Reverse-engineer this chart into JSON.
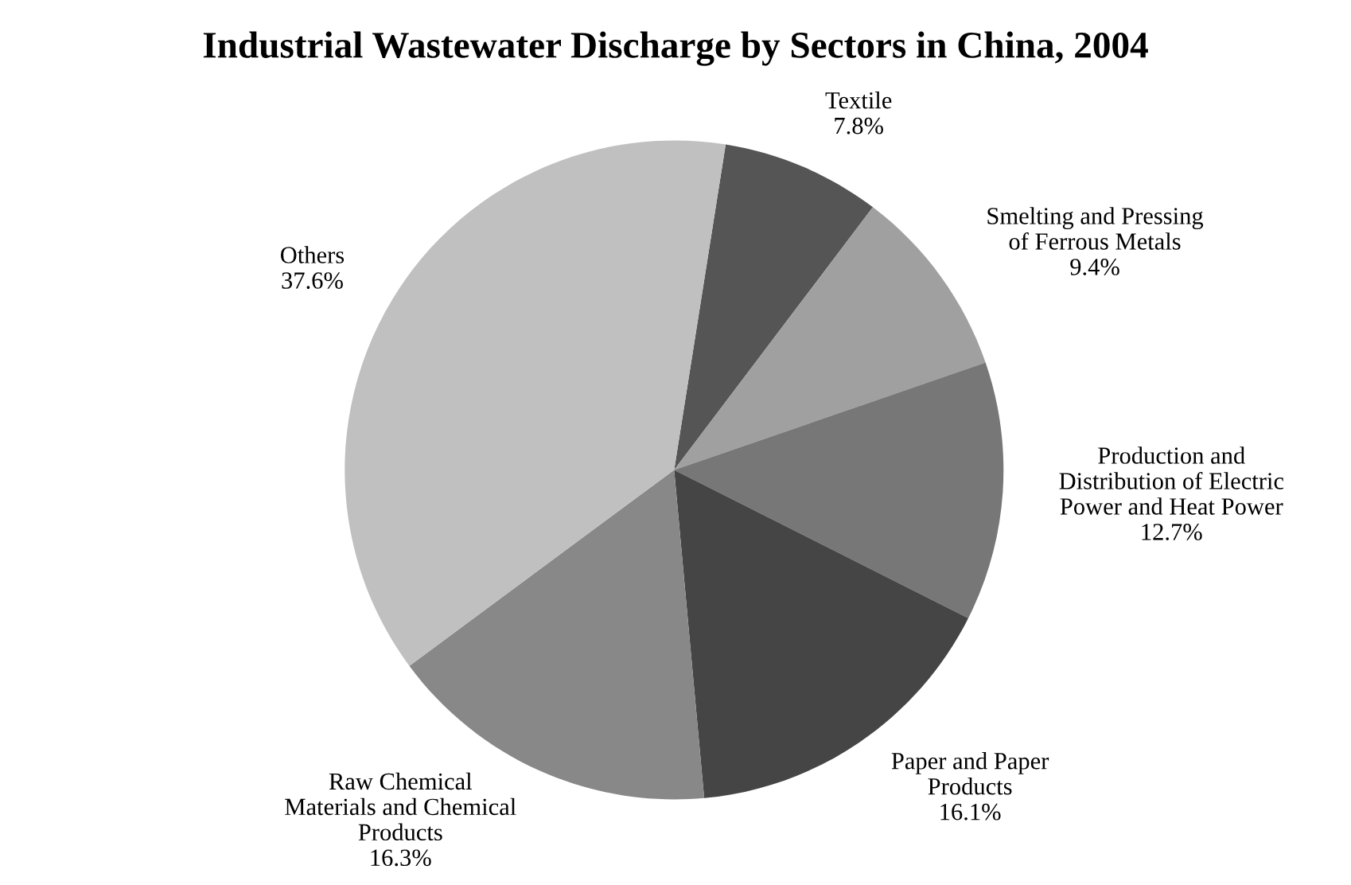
{
  "chart_data": {
    "type": "pie",
    "title": "Industrial Wastewater Discharge by Sectors in China, 2004",
    "categories": [
      "Textile",
      "Smelting and Pressing\nof Ferrous Metals",
      "Production and\nDistribution of Electric\nPower and Heat Power",
      "Paper and Paper\nProducts",
      "Raw Chemical\nMaterials and Chemical\nProducts",
      "Others"
    ],
    "values": [
      7.8,
      9.4,
      12.7,
      16.1,
      16.3,
      37.6
    ],
    "value_labels": [
      "7.8%",
      "9.4%",
      "12.7%",
      "16.1%",
      "16.3%",
      "37.6%"
    ],
    "colors": [
      "#555555",
      "#a0a0a0",
      "#777777",
      "#454545",
      "#888888",
      "#c0c0c0"
    ],
    "legend": false
  }
}
